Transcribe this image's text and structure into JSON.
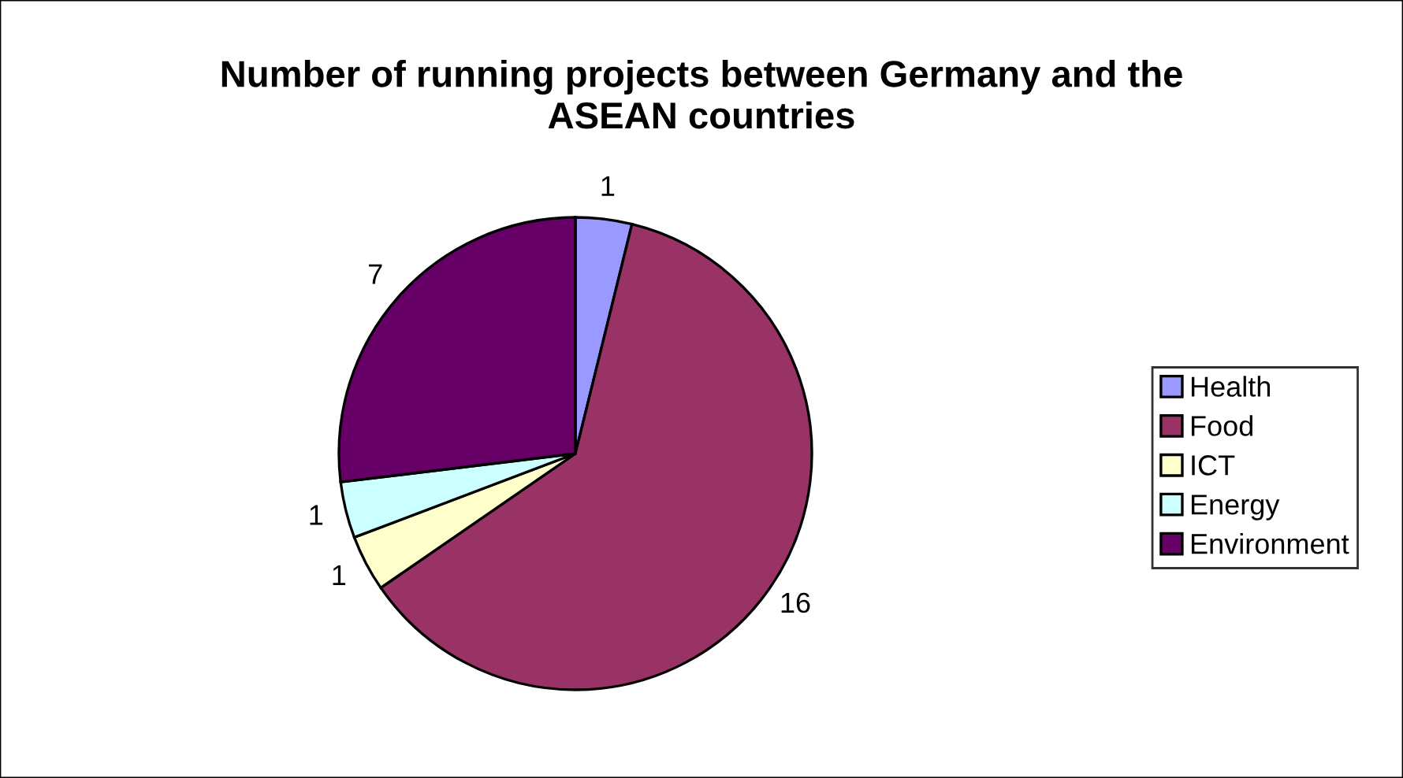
{
  "chart_data": {
    "type": "pie",
    "title": "Number of running projects between Germany and the ASEAN countries",
    "categories": [
      "Health",
      "Food",
      "ICT",
      "Energy",
      "Environment"
    ],
    "values": [
      1,
      16,
      1,
      1,
      7
    ],
    "colors": [
      "#9999ff",
      "#993366",
      "#ffffcc",
      "#ccffff",
      "#660066"
    ],
    "data_labels": true,
    "legend": "right"
  }
}
